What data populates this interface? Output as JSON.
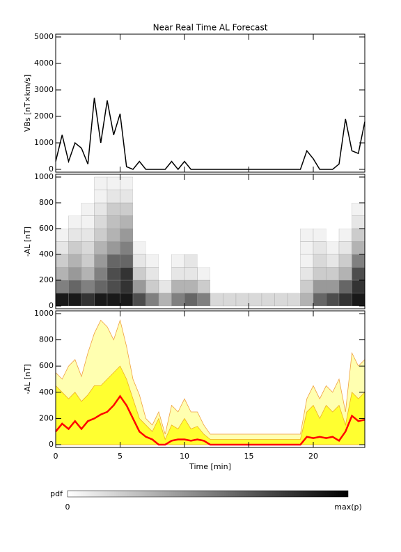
{
  "chart_data": [
    {
      "type": "line",
      "title": "Near Real Time AL Forecast",
      "ylabel": "VBs [nT×km/s]",
      "x": [
        0,
        0.5,
        1,
        1.5,
        2,
        2.5,
        3,
        3.5,
        4,
        4.5,
        5,
        5.5,
        6,
        6.5,
        7,
        7.5,
        8,
        8.5,
        9,
        9.5,
        10,
        10.5,
        11,
        11.5,
        12,
        12.5,
        13,
        13.5,
        14,
        14.5,
        15,
        15.5,
        16,
        16.5,
        17,
        17.5,
        18,
        18.5,
        19,
        19.5,
        20,
        20.5,
        21,
        21.5,
        22,
        22.5,
        23,
        23.5,
        24
      ],
      "series": [
        {
          "color": "#000000",
          "values": [
            300,
            1300,
            300,
            1000,
            800,
            200,
            2700,
            1000,
            2600,
            1300,
            2100,
            100,
            0,
            300,
            0,
            0,
            0,
            0,
            300,
            0,
            300,
            0,
            0,
            0,
            0,
            0,
            0,
            0,
            0,
            0,
            0,
            0,
            0,
            0,
            0,
            0,
            0,
            0,
            0,
            700,
            400,
            0,
            0,
            0,
            200,
            1900,
            700,
            600,
            1800
          ]
        }
      ],
      "xlim": [
        0,
        24
      ],
      "xticks": [
        0,
        5,
        10,
        15,
        20
      ],
      "ylim": [
        0,
        5000
      ],
      "yticks": [
        0,
        1000,
        2000,
        3000,
        4000,
        5000
      ]
    },
    {
      "type": "heatmap",
      "ylabel": "-AL [nT]",
      "x_bins": [
        0,
        1,
        2,
        3,
        4,
        5,
        6,
        7,
        8,
        9,
        10,
        11,
        12,
        13,
        14,
        15,
        16,
        17,
        18,
        19,
        20,
        21,
        22,
        23,
        24
      ],
      "y_bins": [
        0,
        100,
        200,
        300,
        400,
        500,
        600,
        700,
        800,
        900,
        1000
      ],
      "z": [
        [
          0.9,
          0.9,
          0.8,
          0.9,
          0.9,
          0.9,
          0.7,
          0.5,
          0.3,
          0.5,
          0.6,
          0.5,
          0.15,
          0.15,
          0.15,
          0.15,
          0.15,
          0.15,
          0.15,
          0.3,
          0.6,
          0.7,
          0.8,
          0.9
        ],
        [
          0.5,
          0.6,
          0.5,
          0.6,
          0.7,
          0.8,
          0.4,
          0.2,
          0.1,
          0.3,
          0.3,
          0.2,
          0,
          0,
          0,
          0,
          0,
          0,
          0,
          0.2,
          0.4,
          0.4,
          0.6,
          0.8
        ],
        [
          0.3,
          0.4,
          0.3,
          0.5,
          0.7,
          0.8,
          0.2,
          0.1,
          0,
          0.1,
          0.1,
          0.05,
          0,
          0,
          0,
          0,
          0,
          0,
          0,
          0.1,
          0.2,
          0.2,
          0.3,
          0.7
        ],
        [
          0.2,
          0.3,
          0.2,
          0.4,
          0.6,
          0.6,
          0.1,
          0.05,
          0,
          0.05,
          0.1,
          0,
          0,
          0,
          0,
          0,
          0,
          0,
          0,
          0.05,
          0.15,
          0.1,
          0.2,
          0.5
        ],
        [
          0.1,
          0.2,
          0.15,
          0.3,
          0.4,
          0.5,
          0.05,
          0,
          0,
          0,
          0,
          0,
          0,
          0,
          0,
          0,
          0,
          0,
          0,
          0.05,
          0.1,
          0.05,
          0.1,
          0.3
        ],
        [
          0.05,
          0.1,
          0.1,
          0.2,
          0.3,
          0.4,
          0,
          0,
          0,
          0,
          0,
          0,
          0,
          0,
          0,
          0,
          0,
          0,
          0,
          0.05,
          0.05,
          0,
          0.05,
          0.2
        ],
        [
          0,
          0.05,
          0.05,
          0.15,
          0.25,
          0.3,
          0,
          0,
          0,
          0,
          0,
          0,
          0,
          0,
          0,
          0,
          0,
          0,
          0,
          0,
          0,
          0,
          0,
          0.1
        ],
        [
          0,
          0,
          0.05,
          0.1,
          0.2,
          0.2,
          0,
          0,
          0,
          0,
          0,
          0,
          0,
          0,
          0,
          0,
          0,
          0,
          0,
          0,
          0,
          0,
          0,
          0.05
        ],
        [
          0,
          0,
          0,
          0.05,
          0.1,
          0.1,
          0,
          0,
          0,
          0,
          0,
          0,
          0,
          0,
          0,
          0,
          0,
          0,
          0,
          0,
          0,
          0,
          0,
          0
        ],
        [
          0,
          0,
          0,
          0.05,
          0.05,
          0.05,
          0,
          0,
          0,
          0,
          0,
          0,
          0,
          0,
          0,
          0,
          0,
          0,
          0,
          0,
          0,
          0,
          0,
          0
        ]
      ],
      "xlim": [
        0,
        24
      ],
      "xticks": [
        0,
        5,
        10,
        15,
        20
      ],
      "ylim": [
        0,
        1000
      ],
      "yticks": [
        0,
        200,
        400,
        600,
        800,
        1000
      ]
    },
    {
      "type": "area",
      "ylabel": "-AL [nT]",
      "xlabel": "Time [min]",
      "x": [
        0,
        0.5,
        1,
        1.5,
        2,
        2.5,
        3,
        3.5,
        4,
        4.5,
        5,
        5.5,
        6,
        6.5,
        7,
        7.5,
        8,
        8.5,
        9,
        9.5,
        10,
        10.5,
        11,
        11.5,
        12,
        12.5,
        13,
        13.5,
        14,
        14.5,
        15,
        15.5,
        16,
        16.5,
        17,
        17.5,
        18,
        18.5,
        19,
        19.5,
        20,
        20.5,
        21,
        21.5,
        22,
        22.5,
        23,
        23.5,
        24
      ],
      "series": [
        {
          "style": "area",
          "color": "#ffffb0",
          "stroke": "#f0a040",
          "values": [
            550,
            500,
            600,
            650,
            520,
            700,
            850,
            950,
            900,
            800,
            950,
            750,
            500,
            380,
            200,
            150,
            250,
            80,
            300,
            250,
            350,
            250,
            250,
            150,
            80,
            80,
            80,
            80,
            80,
            80,
            80,
            80,
            80,
            80,
            80,
            80,
            80,
            80,
            80,
            350,
            450,
            350,
            450,
            400,
            500,
            250,
            700,
            600,
            650
          ]
        },
        {
          "style": "area",
          "color": "#ffff30",
          "stroke": "#f0b020",
          "values": [
            450,
            400,
            350,
            400,
            330,
            380,
            450,
            450,
            500,
            550,
            600,
            500,
            350,
            200,
            150,
            100,
            200,
            40,
            150,
            120,
            200,
            120,
            140,
            80,
            40,
            40,
            40,
            40,
            40,
            40,
            40,
            40,
            40,
            40,
            40,
            40,
            40,
            40,
            40,
            250,
            300,
            200,
            300,
            250,
            300,
            150,
            400,
            350,
            400
          ]
        },
        {
          "style": "line",
          "color": "#ff0000",
          "values": [
            100,
            160,
            120,
            180,
            120,
            180,
            200,
            230,
            250,
            300,
            370,
            300,
            200,
            100,
            60,
            40,
            0,
            0,
            30,
            40,
            40,
            30,
            40,
            30,
            0,
            0,
            0,
            0,
            0,
            0,
            0,
            0,
            0,
            0,
            0,
            0,
            0,
            0,
            0,
            60,
            50,
            60,
            50,
            60,
            30,
            100,
            220,
            180,
            190
          ]
        }
      ],
      "xlim": [
        0,
        24
      ],
      "xticks": [
        0,
        5,
        10,
        15,
        20
      ],
      "ylim": [
        0,
        1000
      ],
      "yticks": [
        0,
        200,
        400,
        600,
        800,
        1000
      ]
    }
  ],
  "colorbar": {
    "title": "pdf",
    "low_label": "0",
    "high_label": "max(p)"
  }
}
